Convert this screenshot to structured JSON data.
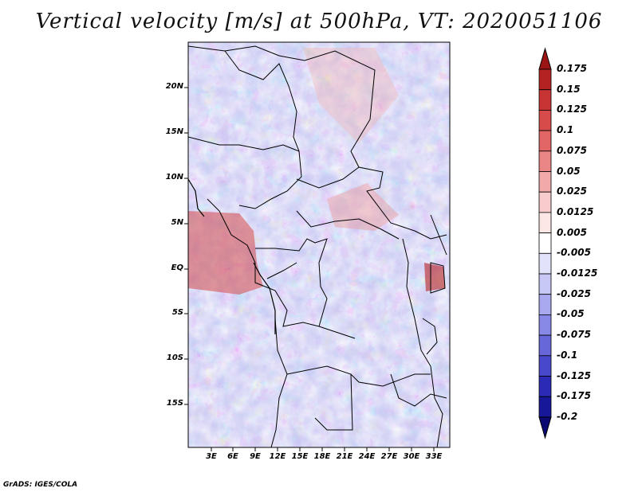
{
  "title": "Vertical velocity [m/s] at 500hPa, VT: 2020051106",
  "credit": "GrADS: IGES/COLA",
  "lat_labels": [
    "20N",
    "15N",
    "10N",
    "5N",
    "EQ",
    "5S",
    "10S",
    "15S"
  ],
  "lon_labels": [
    "3E",
    "6E",
    "9E",
    "12E",
    "15E",
    "18E",
    "21E",
    "24E",
    "27E",
    "30E",
    "33E"
  ],
  "colorbar": {
    "levels": [
      "0.175",
      "0.15",
      "0.125",
      "0.1",
      "0.075",
      "0.05",
      "0.025",
      "0.0125",
      "0.005",
      "-0.005",
      "-0.0125",
      "-0.025",
      "-0.05",
      "-0.075",
      "-0.1",
      "-0.125",
      "-0.175",
      "-0.2"
    ],
    "colors": [
      "#9b1515",
      "#b52222",
      "#c83434",
      "#d84b4b",
      "#e26666",
      "#ea8686",
      "#f2a9a9",
      "#f8cccc",
      "#fce6e6",
      "#ffffff",
      "#e2e2fb",
      "#c8c8f6",
      "#a9a9ef",
      "#8888e6",
      "#6767da",
      "#4848cc",
      "#2a2ab7",
      "#17179a",
      "#0a0a72"
    ]
  }
}
